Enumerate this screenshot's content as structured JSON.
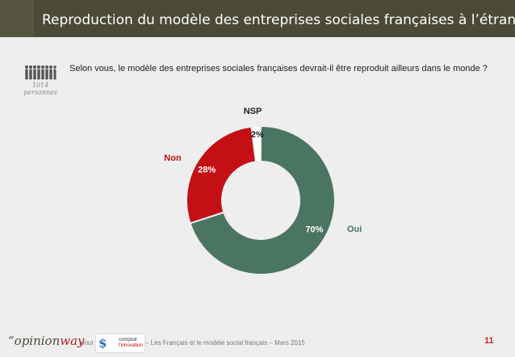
{
  "header": {
    "title": "Reproduction du modèle des entreprises sociales françaises à l’étranger"
  },
  "sample": {
    "n": "1014",
    "unit": "personnes"
  },
  "question": "Selon vous, le modèle des entreprises sociales françaises devrait-il être reproduit ailleurs dans le monde ?",
  "chart_data": {
    "type": "pie",
    "donut": true,
    "categories": [
      "Oui",
      "Non",
      "NSP"
    ],
    "values": [
      70,
      28,
      2
    ],
    "value_labels": [
      "70%",
      "28%",
      "2%"
    ],
    "colors": [
      "#4a7563",
      "#c40f15",
      "#ffffff"
    ],
    "label_colors": [
      "#4a7563",
      "#c40f15",
      "#222222"
    ]
  },
  "footer": {
    "logo_main": "“opinion",
    "logo_accent": "way",
    "pour": "pour",
    "partner_line1": "comptoir",
    "partner_line2": "l'innovation",
    "text": "– Les Français et le modèle social français – Mars 2015",
    "page": "11"
  }
}
